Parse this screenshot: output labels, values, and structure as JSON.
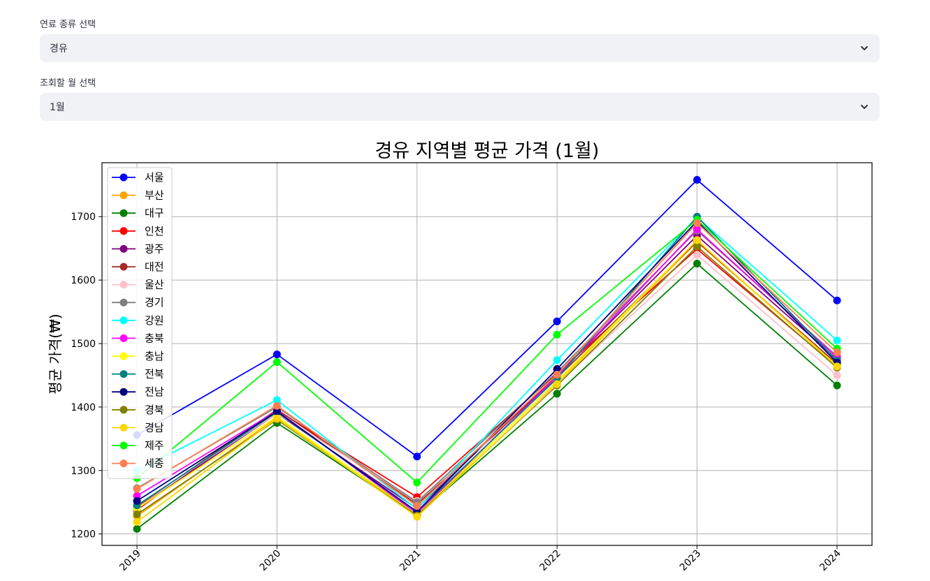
{
  "fuel_select": {
    "label": "연료 종류 선택",
    "value": "경유",
    "icon": "chevron-down-icon"
  },
  "month_select": {
    "label": "조회할 월 선택",
    "value": "1월",
    "icon": "chevron-down-icon"
  },
  "chart_data": {
    "type": "line",
    "title": "경유 지역별 평균 가격 (1월)",
    "xlabel": "",
    "ylabel": "평균 가격(₩)",
    "x": [
      "2019",
      "2020",
      "2021",
      "2022",
      "2023",
      "2024"
    ],
    "yticks": [
      "1200",
      "1300",
      "1400",
      "1500",
      "1600",
      "1700"
    ],
    "ylim": [
      1182,
      1785
    ],
    "grid": true,
    "legend_position": "top-left",
    "series": [
      {
        "name": "서울",
        "color": "#0000ff",
        "values": [
          1356,
          1483,
          1322,
          1535,
          1758,
          1568
        ]
      },
      {
        "name": "부산",
        "color": "#ffa500",
        "values": [
          1228,
          1383,
          1232,
          1440,
          1660,
          1468
        ]
      },
      {
        "name": "대구",
        "color": "#008000",
        "values": [
          1208,
          1375,
          1230,
          1421,
          1626,
          1434
        ]
      },
      {
        "name": "인천",
        "color": "#ff0000",
        "values": [
          1238,
          1395,
          1258,
          1453,
          1649,
          1463
        ]
      },
      {
        "name": "광주",
        "color": "#800080",
        "values": [
          1240,
          1390,
          1240,
          1450,
          1670,
          1475
        ]
      },
      {
        "name": "대전",
        "color": "#a52a2a",
        "values": [
          1243,
          1396,
          1247,
          1446,
          1661,
          1468
        ]
      },
      {
        "name": "울산",
        "color": "#ffc0cb",
        "values": [
          1245,
          1390,
          1252,
          1436,
          1640,
          1450
        ]
      },
      {
        "name": "경기",
        "color": "#808080",
        "values": [
          1272,
          1400,
          1250,
          1455,
          1678,
          1480
        ]
      },
      {
        "name": "강원",
        "color": "#00ffff",
        "values": [
          1300,
          1411,
          1239,
          1474,
          1699,
          1505
        ]
      },
      {
        "name": "충북",
        "color": "#ff00ff",
        "values": [
          1260,
          1394,
          1232,
          1448,
          1680,
          1478
        ]
      },
      {
        "name": "충남",
        "color": "#ffff00",
        "values": [
          1240,
          1385,
          1230,
          1441,
          1663,
          1465
        ]
      },
      {
        "name": "전북",
        "color": "#008080",
        "values": [
          1245,
          1392,
          1235,
          1445,
          1700,
          1473
        ]
      },
      {
        "name": "전남",
        "color": "#000080",
        "values": [
          1252,
          1393,
          1235,
          1460,
          1693,
          1470
        ]
      },
      {
        "name": "경북",
        "color": "#808000",
        "values": [
          1231,
          1380,
          1229,
          1434,
          1653,
          1462
        ]
      },
      {
        "name": "경남",
        "color": "#ffd700",
        "values": [
          1219,
          1382,
          1227,
          1436,
          1663,
          1464
        ]
      },
      {
        "name": "제주",
        "color": "#00ff00",
        "values": [
          1288,
          1471,
          1281,
          1514,
          1695,
          1492
        ]
      },
      {
        "name": "세종",
        "color": "#ff7f50",
        "values": [
          1271,
          1402,
          1244,
          1451,
          1690,
          1486
        ]
      }
    ]
  }
}
